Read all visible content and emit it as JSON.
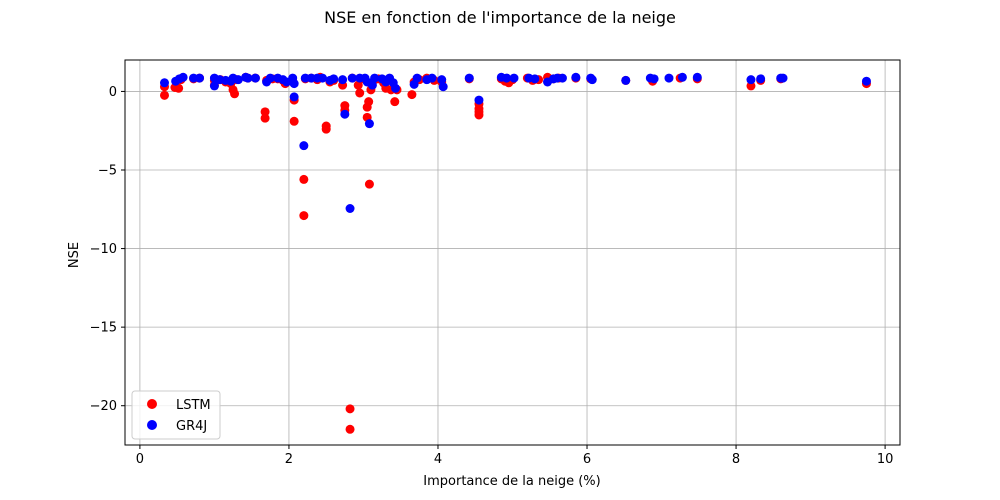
{
  "chart_data": {
    "type": "scatter",
    "title": "NSE en fonction de l'importance de la neige",
    "xlabel": "Importance de la neige (%)",
    "ylabel": "NSE",
    "xlim": [
      -0.2,
      10.2
    ],
    "ylim": [
      -22.5,
      2.0
    ],
    "xticks": [
      0,
      2,
      4,
      6,
      8,
      10
    ],
    "yticks": [
      0,
      -5,
      -10,
      -15,
      -20
    ],
    "grid": true,
    "legend_position": "lower left",
    "series": [
      {
        "name": "LSTM",
        "color": "#ff0000",
        "points": [
          [
            0.33,
            0.3
          ],
          [
            0.33,
            -0.25
          ],
          [
            0.47,
            0.25
          ],
          [
            0.52,
            0.2
          ],
          [
            0.55,
            0.75
          ],
          [
            0.72,
            0.8
          ],
          [
            0.8,
            0.85
          ],
          [
            1.0,
            0.4
          ],
          [
            1.0,
            0.7
          ],
          [
            1.08,
            0.75
          ],
          [
            1.15,
            0.6
          ],
          [
            1.22,
            0.5
          ],
          [
            1.25,
            0.1
          ],
          [
            1.27,
            -0.15
          ],
          [
            1.3,
            0.75
          ],
          [
            1.42,
            0.9
          ],
          [
            1.45,
            0.85
          ],
          [
            1.55,
            0.85
          ],
          [
            1.68,
            -1.3
          ],
          [
            1.68,
            -1.7
          ],
          [
            1.7,
            0.7
          ],
          [
            1.78,
            0.8
          ],
          [
            1.85,
            0.8
          ],
          [
            1.92,
            0.7
          ],
          [
            1.95,
            0.5
          ],
          [
            2.05,
            0.7
          ],
          [
            2.07,
            -0.55
          ],
          [
            2.07,
            -1.9
          ],
          [
            2.2,
            -5.6
          ],
          [
            2.2,
            -7.9
          ],
          [
            2.22,
            0.8
          ],
          [
            2.3,
            0.85
          ],
          [
            2.38,
            0.75
          ],
          [
            2.42,
            0.9
          ],
          [
            2.5,
            -2.2
          ],
          [
            2.5,
            -2.4
          ],
          [
            2.55,
            0.6
          ],
          [
            2.6,
            0.7
          ],
          [
            2.72,
            0.4
          ],
          [
            2.75,
            -0.9
          ],
          [
            2.75,
            -1.2
          ],
          [
            2.82,
            -20.2
          ],
          [
            2.82,
            -21.5
          ],
          [
            2.85,
            0.85
          ],
          [
            2.93,
            0.4
          ],
          [
            2.95,
            -0.1
          ],
          [
            3.0,
            0.8
          ],
          [
            3.05,
            -1.0
          ],
          [
            3.05,
            -1.65
          ],
          [
            3.07,
            -0.65
          ],
          [
            3.08,
            -5.9
          ],
          [
            3.1,
            0.1
          ],
          [
            3.15,
            0.75
          ],
          [
            3.2,
            0.8
          ],
          [
            3.27,
            0.55
          ],
          [
            3.3,
            0.2
          ],
          [
            3.35,
            0.75
          ],
          [
            3.37,
            0.1
          ],
          [
            3.42,
            -0.65
          ],
          [
            3.45,
            0.1
          ],
          [
            3.65,
            -0.2
          ],
          [
            3.68,
            0.6
          ],
          [
            3.75,
            0.75
          ],
          [
            3.85,
            0.85
          ],
          [
            3.95,
            0.7
          ],
          [
            4.05,
            0.6
          ],
          [
            4.42,
            0.8
          ],
          [
            4.55,
            -0.8
          ],
          [
            4.55,
            -1.1
          ],
          [
            4.55,
            -1.3
          ],
          [
            4.55,
            -1.5
          ],
          [
            4.85,
            0.8
          ],
          [
            4.9,
            0.65
          ],
          [
            4.95,
            0.55
          ],
          [
            5.0,
            0.75
          ],
          [
            5.2,
            0.85
          ],
          [
            5.27,
            0.7
          ],
          [
            5.35,
            0.75
          ],
          [
            5.47,
            0.9
          ],
          [
            5.55,
            0.8
          ],
          [
            5.62,
            0.85
          ],
          [
            5.85,
            0.85
          ],
          [
            6.05,
            0.8
          ],
          [
            6.52,
            0.7
          ],
          [
            6.88,
            0.65
          ],
          [
            7.25,
            0.85
          ],
          [
            7.48,
            0.8
          ],
          [
            8.2,
            0.35
          ],
          [
            8.33,
            0.7
          ],
          [
            8.6,
            0.8
          ],
          [
            9.75,
            0.5
          ]
        ]
      },
      {
        "name": "GR4J",
        "color": "#0000ff",
        "points": [
          [
            0.33,
            0.55
          ],
          [
            0.48,
            0.65
          ],
          [
            0.53,
            0.8
          ],
          [
            0.58,
            0.9
          ],
          [
            0.72,
            0.85
          ],
          [
            0.8,
            0.85
          ],
          [
            1.0,
            0.85
          ],
          [
            1.0,
            0.35
          ],
          [
            1.07,
            0.75
          ],
          [
            1.15,
            0.7
          ],
          [
            1.22,
            0.65
          ],
          [
            1.25,
            0.85
          ],
          [
            1.32,
            0.75
          ],
          [
            1.42,
            0.9
          ],
          [
            1.45,
            0.85
          ],
          [
            1.55,
            0.85
          ],
          [
            1.7,
            0.6
          ],
          [
            1.75,
            0.85
          ],
          [
            1.85,
            0.85
          ],
          [
            1.92,
            0.75
          ],
          [
            1.97,
            0.6
          ],
          [
            2.05,
            0.85
          ],
          [
            2.07,
            0.5
          ],
          [
            2.07,
            -0.35
          ],
          [
            2.2,
            -3.45
          ],
          [
            2.22,
            0.85
          ],
          [
            2.3,
            0.85
          ],
          [
            2.38,
            0.85
          ],
          [
            2.45,
            0.85
          ],
          [
            2.55,
            0.7
          ],
          [
            2.6,
            0.8
          ],
          [
            2.72,
            0.75
          ],
          [
            2.75,
            -1.45
          ],
          [
            2.82,
            -7.45
          ],
          [
            2.85,
            0.85
          ],
          [
            2.95,
            0.85
          ],
          [
            3.02,
            0.85
          ],
          [
            3.05,
            0.6
          ],
          [
            3.08,
            -2.05
          ],
          [
            3.12,
            0.4
          ],
          [
            3.15,
            0.85
          ],
          [
            3.25,
            0.8
          ],
          [
            3.3,
            0.6
          ],
          [
            3.35,
            0.85
          ],
          [
            3.4,
            0.55
          ],
          [
            3.43,
            0.2
          ],
          [
            3.68,
            0.45
          ],
          [
            3.72,
            0.85
          ],
          [
            3.85,
            0.75
          ],
          [
            3.92,
            0.85
          ],
          [
            4.05,
            0.75
          ],
          [
            4.07,
            0.3
          ],
          [
            4.42,
            0.85
          ],
          [
            4.55,
            -0.55
          ],
          [
            4.85,
            0.9
          ],
          [
            4.92,
            0.85
          ],
          [
            5.02,
            0.85
          ],
          [
            5.22,
            0.85
          ],
          [
            5.3,
            0.8
          ],
          [
            5.47,
            0.6
          ],
          [
            5.55,
            0.8
          ],
          [
            5.6,
            0.85
          ],
          [
            5.67,
            0.85
          ],
          [
            5.85,
            0.9
          ],
          [
            6.05,
            0.85
          ],
          [
            6.07,
            0.75
          ],
          [
            6.52,
            0.7
          ],
          [
            6.85,
            0.85
          ],
          [
            6.9,
            0.8
          ],
          [
            7.1,
            0.85
          ],
          [
            7.28,
            0.9
          ],
          [
            7.48,
            0.9
          ],
          [
            8.2,
            0.75
          ],
          [
            8.33,
            0.8
          ],
          [
            8.6,
            0.85
          ],
          [
            8.63,
            0.85
          ],
          [
            9.75,
            0.65
          ]
        ]
      }
    ]
  }
}
